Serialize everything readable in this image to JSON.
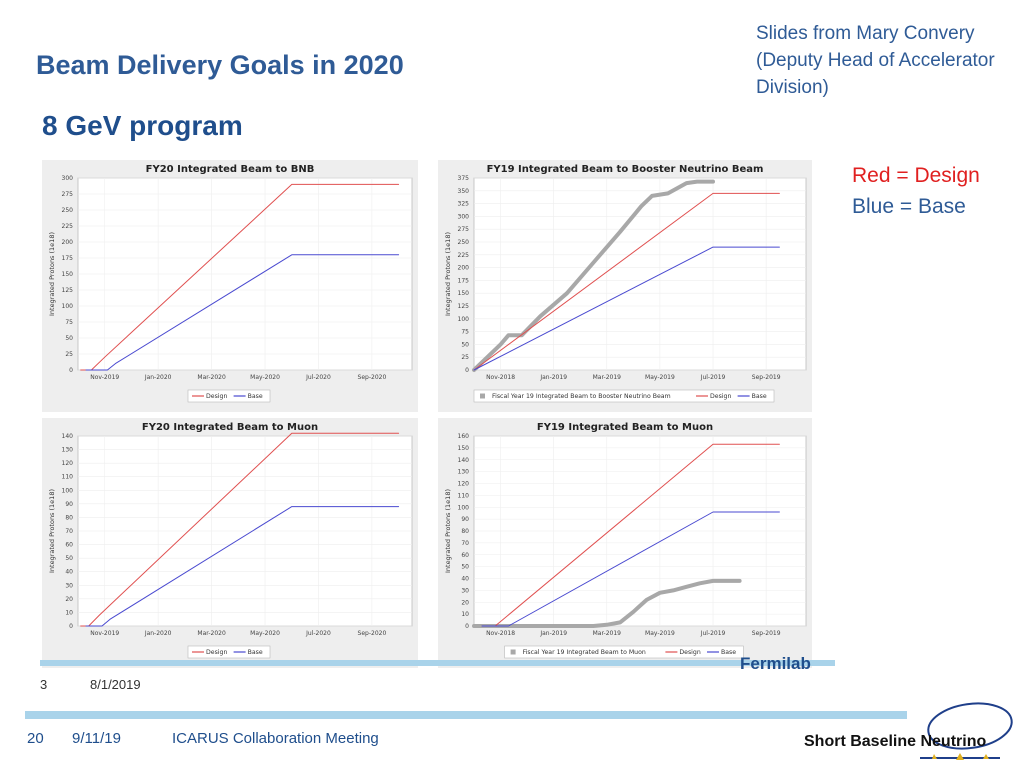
{
  "slide": {
    "title": "Beam Delivery Goals in 2020",
    "subtitle": "8 GeV program",
    "source_note": "Slides from Mary Convery (Deputy Head of Accelerator Division)",
    "legend_red": "Red = Design",
    "legend_blue": "Blue = Base",
    "inner_slide_number": "3",
    "inner_date": "8/1/2019",
    "fermilab_label": "Fermilab"
  },
  "footer": {
    "page_number": "20",
    "date": "9/11/19",
    "meeting": "ICARUS Collaboration Meeting",
    "logo_text": "Short Baseline Neutrino"
  },
  "colors": {
    "design": "#e05050",
    "base": "#4a4ad0",
    "actual": "#a8a8a8",
    "accent": "#2f5b96"
  },
  "chart_data": [
    {
      "type": "line",
      "title": "FY20 Integrated Beam to BNB",
      "ylabel": "Integrated Protons (1e18)",
      "xlabel": "",
      "ylim": [
        0,
        300
      ],
      "yticks": [
        0,
        25,
        50,
        75,
        100,
        125,
        150,
        175,
        200,
        225,
        250,
        275,
        300
      ],
      "xlim": [
        0,
        12.5
      ],
      "xticks": [
        {
          "v": 1,
          "label": "Nov-2019"
        },
        {
          "v": 3,
          "label": "Jan-2020"
        },
        {
          "v": 5,
          "label": "Mar-2020"
        },
        {
          "v": 7,
          "label": "May-2020"
        },
        {
          "v": 9,
          "label": "Jul-2020"
        },
        {
          "v": 11,
          "label": "Sep-2020"
        }
      ],
      "series": [
        {
          "name": "Design",
          "color": "#e05050",
          "x": [
            0.1,
            0.5,
            1.0,
            8.0,
            12.0
          ],
          "y": [
            0,
            0,
            20,
            290,
            290
          ]
        },
        {
          "name": "Base",
          "color": "#4a4ad0",
          "x": [
            0.3,
            1.1,
            1.4,
            8.0,
            12.0
          ],
          "y": [
            0,
            0,
            10,
            180,
            180
          ]
        }
      ]
    },
    {
      "type": "line",
      "title": "FY19 Integrated Beam to Booster Neutrino Beam",
      "ylabel": "Integrated Protons (1e18)",
      "xlabel": "",
      "ylim": [
        0,
        375
      ],
      "yticks": [
        0,
        25,
        50,
        75,
        100,
        125,
        150,
        175,
        200,
        225,
        250,
        275,
        300,
        325,
        350,
        375
      ],
      "xlim": [
        0,
        12.5
      ],
      "xticks": [
        {
          "v": 1,
          "label": "Nov-2018"
        },
        {
          "v": 3,
          "label": "Jan-2019"
        },
        {
          "v": 5,
          "label": "Mar-2019"
        },
        {
          "v": 7,
          "label": "May-2019"
        },
        {
          "v": 9,
          "label": "Jul-2019"
        },
        {
          "v": 11,
          "label": "Sep-2019"
        }
      ],
      "series": [
        {
          "name": "Fiscal Year 19 Integrated Beam to Booster Neutrino Beam",
          "color": "#a8a8a8",
          "x": [
            0,
            1.0,
            1.3,
            1.8,
            2.5,
            3.5,
            4.5,
            5.5,
            6.3,
            6.7,
            7.3,
            8.0,
            8.4,
            9.0
          ],
          "y": [
            0,
            50,
            68,
            68,
            105,
            150,
            210,
            270,
            320,
            340,
            345,
            365,
            368,
            368
          ]
        },
        {
          "name": "Design",
          "color": "#e05050",
          "x": [
            0,
            9.0,
            11.5
          ],
          "y": [
            0,
            345,
            345
          ]
        },
        {
          "name": "Base",
          "color": "#4a4ad0",
          "x": [
            0,
            9.0,
            11.5
          ],
          "y": [
            0,
            240,
            240
          ]
        }
      ]
    },
    {
      "type": "line",
      "title": "FY20 Integrated Beam to Muon",
      "ylabel": "Integrated Protons (1e18)",
      "xlabel": "",
      "ylim": [
        0,
        140
      ],
      "yticks": [
        0,
        10,
        20,
        30,
        40,
        50,
        60,
        70,
        80,
        90,
        100,
        110,
        120,
        130,
        140
      ],
      "xlim": [
        0,
        12.5
      ],
      "xticks": [
        {
          "v": 1,
          "label": "Nov-2019"
        },
        {
          "v": 3,
          "label": "Jan-2020"
        },
        {
          "v": 5,
          "label": "Mar-2020"
        },
        {
          "v": 7,
          "label": "May-2020"
        },
        {
          "v": 9,
          "label": "Jul-2020"
        },
        {
          "v": 11,
          "label": "Sep-2020"
        }
      ],
      "series": [
        {
          "name": "Design",
          "color": "#e05050",
          "x": [
            0.1,
            0.4,
            0.8,
            8.0,
            12.0
          ],
          "y": [
            0,
            0,
            8,
            142,
            142
          ]
        },
        {
          "name": "Base",
          "color": "#4a4ad0",
          "x": [
            0.3,
            0.9,
            1.2,
            8.0,
            12.0
          ],
          "y": [
            0,
            0,
            5,
            88,
            88
          ]
        }
      ]
    },
    {
      "type": "line",
      "title": "FY19 Integrated Beam to Muon",
      "ylabel": "Integrated Protons (1e18)",
      "xlabel": "",
      "ylim": [
        0,
        160
      ],
      "yticks": [
        0,
        10,
        20,
        30,
        40,
        50,
        60,
        70,
        80,
        90,
        100,
        110,
        120,
        130,
        140,
        150,
        160
      ],
      "xlim": [
        0,
        12.5
      ],
      "xticks": [
        {
          "v": 1,
          "label": "Nov-2018"
        },
        {
          "v": 3,
          "label": "Jan-2019"
        },
        {
          "v": 5,
          "label": "Mar-2019"
        },
        {
          "v": 7,
          "label": "May-2019"
        },
        {
          "v": 9,
          "label": "Jul-2019"
        },
        {
          "v": 11,
          "label": "Sep-2019"
        }
      ],
      "series": [
        {
          "name": "Fiscal Year 19 Integrated Beam to Muon",
          "color": "#a8a8a8",
          "x": [
            0,
            4.5,
            5.0,
            5.5,
            6.0,
            6.5,
            7.0,
            7.5,
            8.0,
            8.5,
            9.0,
            9.5,
            10.0
          ],
          "y": [
            0,
            0,
            1,
            3,
            12,
            22,
            28,
            30,
            33,
            36,
            38,
            38,
            38
          ]
        },
        {
          "name": "Design",
          "color": "#e05050",
          "x": [
            0.3,
            0.8,
            9.0,
            11.5
          ],
          "y": [
            0,
            0,
            153,
            153
          ]
        },
        {
          "name": "Base",
          "color": "#4a4ad0",
          "x": [
            0.3,
            1.3,
            9.0,
            11.5
          ],
          "y": [
            0,
            0,
            96,
            96
          ]
        }
      ]
    }
  ]
}
